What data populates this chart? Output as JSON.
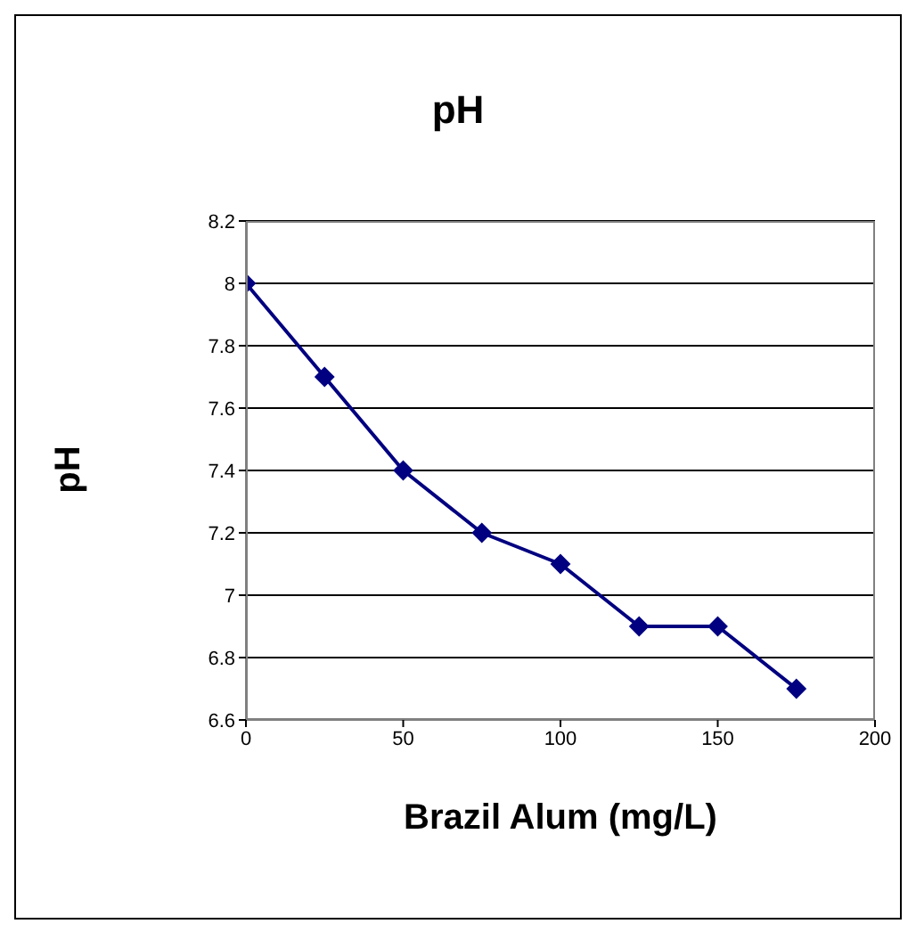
{
  "chart_data": {
    "type": "line",
    "title": "pH",
    "xlabel": "Brazil Alum (mg/L)",
    "ylabel": "pH",
    "x": [
      0,
      25,
      50,
      75,
      100,
      125,
      150,
      175
    ],
    "series": [
      {
        "color": "#000080",
        "values": [
          8,
          7.7,
          7.4,
          7.2,
          7.1,
          6.9,
          6.9,
          6.7
        ]
      }
    ],
    "xlim": [
      0,
      200
    ],
    "xticks": [
      0,
      50,
      100,
      150,
      200
    ],
    "ylim": [
      6.6,
      8.2
    ],
    "yticks": [
      6.6,
      6.8,
      7,
      7.2,
      7.4,
      7.6,
      7.8,
      8,
      8.2
    ],
    "grid": "y",
    "legend": false,
    "marker": "diamond",
    "line_style": "solid"
  }
}
